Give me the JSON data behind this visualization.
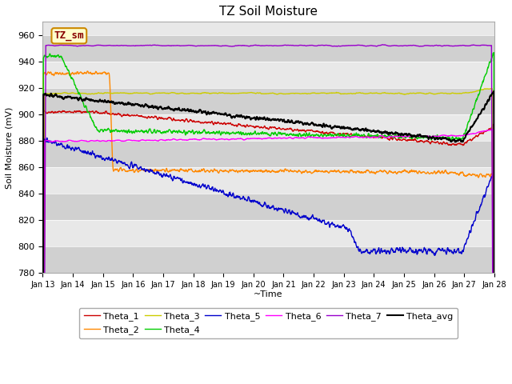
{
  "title": "TZ Soil Moisture",
  "xlabel": "~Time",
  "ylabel": "Soil Moisture (mV)",
  "ylim": [
    780,
    970
  ],
  "yticks": [
    780,
    800,
    820,
    840,
    860,
    880,
    900,
    920,
    940,
    960
  ],
  "xtick_labels": [
    "Jan 13",
    "Jan 14",
    "Jan 15",
    "Jan 16",
    "Jan 17",
    "Jan 18",
    "Jan 19",
    "Jan 20",
    "Jan 21",
    "Jan 22",
    "Jan 23",
    "Jan 24",
    "Jan 25",
    "Jan 26",
    "Jan 27",
    "Jan 28"
  ],
  "colors": {
    "Theta_1": "#cc0000",
    "Theta_2": "#ff8800",
    "Theta_3": "#cccc00",
    "Theta_4": "#00cc00",
    "Theta_5": "#0000cc",
    "Theta_6": "#ff00ff",
    "Theta_7": "#9900cc",
    "Theta_avg": "#000000"
  },
  "legend_label_box": {
    "text": "TZ_sm",
    "facecolor": "#ffffcc",
    "edgecolor": "#cc8800"
  },
  "linewidth": 1.0,
  "figsize": [
    6.4,
    4.8
  ],
  "dpi": 100
}
